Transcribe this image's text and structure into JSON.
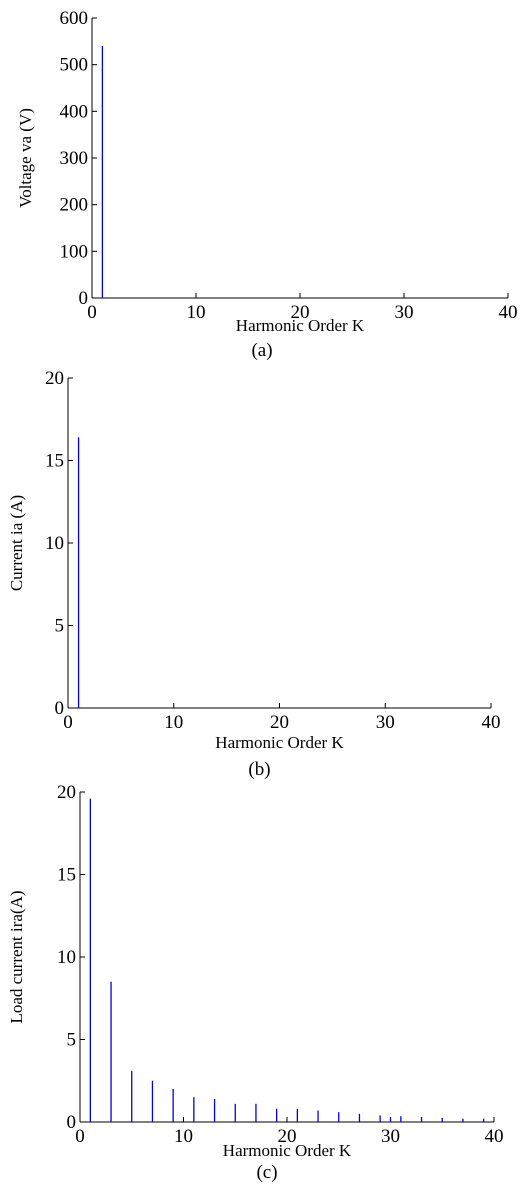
{
  "chart_data": [
    {
      "type": "bar",
      "ylabel": "Voltage va (V)",
      "xlabel": "Harmonic Order K",
      "caption": "(a)",
      "xlim": [
        0,
        40
      ],
      "ylim": [
        0,
        600
      ],
      "xticks": [
        "0",
        "10",
        "20",
        "30",
        "40"
      ],
      "yticks": [
        "0",
        "100",
        "200",
        "300",
        "400",
        "500",
        "600"
      ],
      "color": "#0000ee",
      "x": [
        1
      ],
      "values": [
        540
      ]
    },
    {
      "type": "bar",
      "ylabel": "Current ia (A)",
      "xlabel": "Harmonic Order K",
      "caption": "(b)",
      "xlim": [
        0,
        40
      ],
      "ylim": [
        0,
        20
      ],
      "xticks": [
        "0",
        "10",
        "20",
        "30",
        "40"
      ],
      "yticks": [
        "0",
        "5",
        "10",
        "15",
        "20"
      ],
      "color": "#0000ee",
      "x": [
        1
      ],
      "values": [
        16.4
      ]
    },
    {
      "type": "bar",
      "ylabel": "Load current ira(A)",
      "xlabel": "Harmonic Order K",
      "caption": "(c)",
      "xlim": [
        0,
        40
      ],
      "ylim": [
        0,
        20
      ],
      "xticks": [
        "0",
        "10",
        "20",
        "30",
        "40"
      ],
      "yticks": [
        "0",
        "5",
        "10",
        "15",
        "20"
      ],
      "color": "#0000ee",
      "x": [
        1,
        3,
        5,
        7,
        9,
        11,
        13,
        15,
        17,
        19,
        21,
        23,
        25,
        27,
        29,
        30,
        31,
        33,
        35,
        37,
        39
      ],
      "values": [
        19.6,
        8.5,
        3.1,
        2.5,
        2.0,
        1.5,
        1.4,
        1.1,
        1.1,
        0.8,
        0.8,
        0.7,
        0.6,
        0.5,
        0.4,
        0.3,
        0.35,
        0.3,
        0.25,
        0.2,
        0.2
      ]
    }
  ]
}
